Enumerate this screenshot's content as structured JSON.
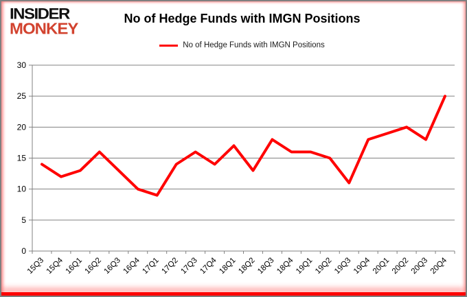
{
  "brand": {
    "line1": "INSIDER",
    "line2": "MONKEY",
    "line2_color": "#d2432f"
  },
  "header": {
    "title": "No of Hedge Funds with IMGN Positions"
  },
  "legend": {
    "label": "No of Hedge Funds with IMGN Positions",
    "color": "#ff0000"
  },
  "chart_data": {
    "type": "line",
    "title": "No of Hedge Funds with IMGN Positions",
    "categories": [
      "15Q3",
      "15Q4",
      "16Q1",
      "16Q2",
      "16Q3",
      "16Q4",
      "17Q1",
      "17Q2",
      "17Q3",
      "17Q4",
      "18Q1",
      "18Q2",
      "18Q3",
      "18Q4",
      "19Q1",
      "19Q2",
      "19Q3",
      "19Q4",
      "20Q1",
      "20Q2",
      "20Q3",
      "20Q4"
    ],
    "series": [
      {
        "name": "No of Hedge Funds with IMGN Positions",
        "color": "#ff0000",
        "values": [
          14,
          12,
          13,
          16,
          13,
          10,
          9,
          14,
          16,
          14,
          17,
          13,
          18,
          16,
          16,
          15,
          11,
          18,
          19,
          20,
          18,
          25
        ]
      }
    ],
    "xlabel": "",
    "ylabel": "",
    "ylim": [
      0,
      30
    ],
    "yticks": [
      0,
      5,
      10,
      15,
      20,
      25,
      30
    ],
    "grid": "horizontal",
    "grid_color": "#808080",
    "axis_color": "#808080",
    "legend_position": "top",
    "x_label_rotation": -45
  }
}
